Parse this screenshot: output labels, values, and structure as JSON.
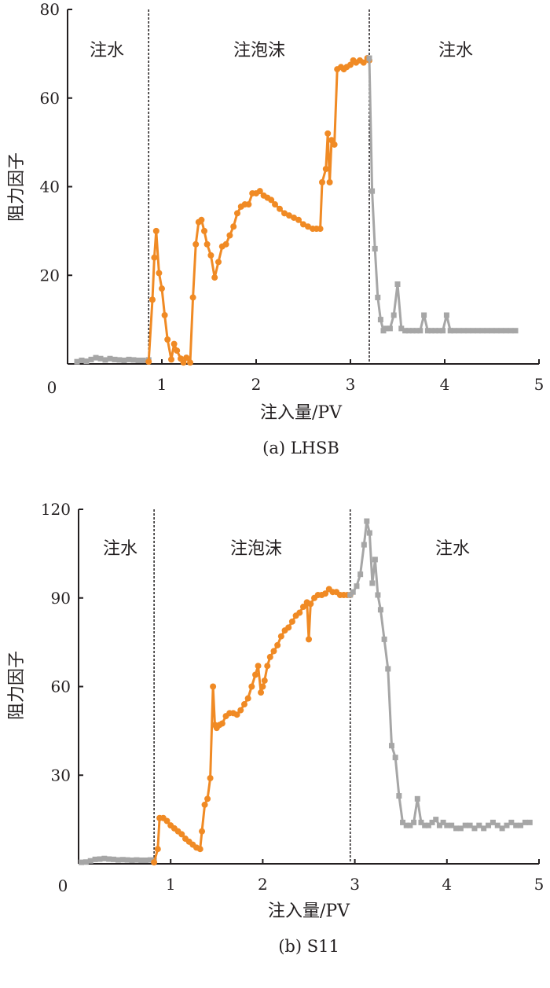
{
  "chart_data": [
    {
      "type": "line",
      "caption": "(a) LHSB",
      "xlabel": "注入量/PV",
      "ylabel": "阻力因子",
      "xlim": [
        0,
        5
      ],
      "ylim": [
        0,
        80
      ],
      "xticks": [
        0,
        1,
        2,
        3,
        4,
        5
      ],
      "yticks": [
        20,
        40,
        60,
        80
      ],
      "y_zero_label": "0",
      "phase_boundaries": [
        0.86,
        3.2
      ],
      "phase_labels": [
        "注水",
        "注泡沫",
        "注水"
      ],
      "colors": {
        "water": "#a6a6a6",
        "foam": "#f08a24",
        "divider": "#231f20"
      },
      "series": [
        {
          "phase": "water",
          "marker": "square",
          "x": [
            0.1,
            0.15,
            0.2,
            0.25,
            0.3,
            0.35,
            0.4,
            0.45,
            0.5,
            0.55,
            0.6,
            0.65,
            0.7,
            0.75,
            0.8,
            0.86
          ],
          "y": [
            0.5,
            0.8,
            0.6,
            1.0,
            1.4,
            1.2,
            0.9,
            1.2,
            1.0,
            0.9,
            0.8,
            1.0,
            0.9,
            0.8,
            0.8,
            0.9
          ]
        },
        {
          "phase": "foam",
          "marker": "circle",
          "x": [
            0.86,
            0.9,
            0.92,
            0.94,
            0.97,
            1.0,
            1.03,
            1.06,
            1.1,
            1.13,
            1.16,
            1.2,
            1.23,
            1.26,
            1.3,
            1.33,
            1.36,
            1.39,
            1.42,
            1.45,
            1.48,
            1.52,
            1.56,
            1.6,
            1.64,
            1.68,
            1.72,
            1.76,
            1.8,
            1.84,
            1.88,
            1.92,
            1.96,
            2.0,
            2.04,
            2.08,
            2.12,
            2.16,
            2.2,
            2.25,
            2.3,
            2.35,
            2.4,
            2.45,
            2.5,
            2.55,
            2.6,
            2.64,
            2.68,
            2.7,
            2.74,
            2.76,
            2.78,
            2.8,
            2.83,
            2.86,
            2.9,
            2.93,
            2.96,
            3.0,
            3.03,
            3.06,
            3.1,
            3.14,
            3.18,
            3.2
          ],
          "y": [
            0.5,
            14.5,
            24,
            30,
            20.5,
            17,
            11,
            5.5,
            1,
            4.5,
            3,
            1.2,
            0.3,
            1.4,
            0.3,
            15,
            27,
            32,
            32.5,
            30,
            27,
            24.5,
            19.5,
            23,
            26.5,
            27,
            29,
            31,
            34,
            35.5,
            36,
            36,
            38.5,
            38.5,
            39,
            38,
            37.5,
            37,
            36,
            35,
            34,
            33.5,
            33,
            32.5,
            31.5,
            31,
            30.5,
            30.5,
            30.5,
            41,
            44,
            52,
            41,
            50.5,
            49.5,
            66.5,
            67,
            66.5,
            67,
            67.5,
            68.5,
            68,
            68.5,
            68,
            69,
            68.5
          ]
        },
        {
          "phase": "water",
          "marker": "square",
          "x": [
            3.2,
            3.23,
            3.26,
            3.29,
            3.32,
            3.35,
            3.38,
            3.42,
            3.46,
            3.5,
            3.54,
            3.58,
            3.62,
            3.66,
            3.7,
            3.74,
            3.78,
            3.82,
            3.86,
            3.9,
            3.94,
            3.98,
            4.02,
            4.06,
            4.1,
            4.15,
            4.2,
            4.25,
            4.3,
            4.35,
            4.4,
            4.45,
            4.5,
            4.55,
            4.6,
            4.65,
            4.7,
            4.75
          ],
          "y": [
            69,
            39,
            26,
            15,
            10,
            7.5,
            8,
            8,
            11,
            18,
            8,
            7.5,
            7.5,
            7.5,
            7.5,
            7.5,
            11,
            7.5,
            7.5,
            7.5,
            7.5,
            7.5,
            11,
            7.5,
            7.5,
            7.5,
            7.5,
            7.5,
            7.5,
            7.5,
            7.5,
            7.5,
            7.5,
            7.5,
            7.5,
            7.5,
            7.5,
            7.5
          ]
        }
      ]
    },
    {
      "type": "line",
      "caption": "(b) S11",
      "xlabel": "注入量/PV",
      "ylabel": "阻力因子",
      "xlim": [
        0,
        5
      ],
      "ylim": [
        0,
        120
      ],
      "xticks": [
        0,
        1,
        2,
        3,
        4,
        5
      ],
      "yticks": [
        30,
        60,
        90,
        120
      ],
      "y_zero_label": "0",
      "phase_boundaries": [
        0.82,
        2.95
      ],
      "phase_labels": [
        "注水",
        "注泡沫",
        "注水"
      ],
      "colors": {
        "water": "#a6a6a6",
        "foam": "#f08a24",
        "divider": "#231f20"
      },
      "series": [
        {
          "phase": "water",
          "marker": "square",
          "x": [
            0.03,
            0.08,
            0.13,
            0.18,
            0.23,
            0.28,
            0.33,
            0.38,
            0.43,
            0.48,
            0.53,
            0.58,
            0.63,
            0.68,
            0.73,
            0.78,
            0.82
          ],
          "y": [
            0.5,
            0.6,
            1.0,
            1.5,
            1.6,
            1.8,
            1.6,
            1.5,
            1.3,
            1.4,
            1.3,
            1.2,
            1.3,
            1.2,
            1.2,
            1.3,
            1.2
          ]
        },
        {
          "phase": "foam",
          "marker": "circle",
          "x": [
            0.82,
            0.86,
            0.88,
            0.92,
            0.96,
            1.0,
            1.04,
            1.08,
            1.12,
            1.16,
            1.2,
            1.24,
            1.28,
            1.32,
            1.34,
            1.37,
            1.4,
            1.43,
            1.46,
            1.48,
            1.5,
            1.53,
            1.56,
            1.6,
            1.64,
            1.68,
            1.72,
            1.76,
            1.8,
            1.84,
            1.88,
            1.92,
            1.95,
            1.98,
            2.0,
            2.02,
            2.05,
            2.08,
            2.12,
            2.16,
            2.2,
            2.24,
            2.28,
            2.32,
            2.36,
            2.4,
            2.44,
            2.48,
            2.5,
            2.52,
            2.56,
            2.6,
            2.64,
            2.68,
            2.72,
            2.76,
            2.8,
            2.84,
            2.88,
            2.92,
            2.95
          ],
          "y": [
            0.5,
            5,
            15.5,
            15.5,
            14.5,
            13,
            12,
            11,
            10,
            8.5,
            7.5,
            6.5,
            5.5,
            5,
            11,
            20,
            22,
            29,
            60,
            47,
            46,
            47,
            47.5,
            50,
            51,
            51,
            50.5,
            52,
            54,
            56,
            60,
            64,
            67,
            58,
            60,
            62,
            67,
            70,
            72,
            74,
            77,
            79,
            80,
            82,
            84,
            85,
            87,
            88.5,
            76,
            88,
            90,
            91,
            91,
            91.5,
            93,
            92,
            92,
            91,
            91,
            91,
            91
          ]
        },
        {
          "phase": "water",
          "marker": "square",
          "x": [
            2.95,
            2.98,
            3.02,
            3.06,
            3.1,
            3.13,
            3.16,
            3.19,
            3.22,
            3.25,
            3.28,
            3.32,
            3.36,
            3.4,
            3.44,
            3.48,
            3.52,
            3.56,
            3.6,
            3.64,
            3.68,
            3.72,
            3.76,
            3.8,
            3.84,
            3.88,
            3.92,
            3.96,
            4.0,
            4.05,
            4.1,
            4.15,
            4.2,
            4.25,
            4.3,
            4.35,
            4.4,
            4.45,
            4.5,
            4.55,
            4.6,
            4.65,
            4.7,
            4.75,
            4.8,
            4.85,
            4.9
          ],
          "y": [
            91,
            92,
            94,
            98,
            108,
            116,
            112,
            95,
            103,
            91,
            86,
            76,
            66,
            40,
            36,
            23,
            14,
            13,
            13,
            14,
            22,
            14,
            13,
            13,
            14,
            15,
            13,
            14,
            13,
            13,
            12,
            12,
            13,
            13,
            12,
            13,
            12,
            13,
            14,
            13,
            12,
            13,
            14,
            13,
            13,
            14,
            14
          ]
        }
      ]
    }
  ]
}
